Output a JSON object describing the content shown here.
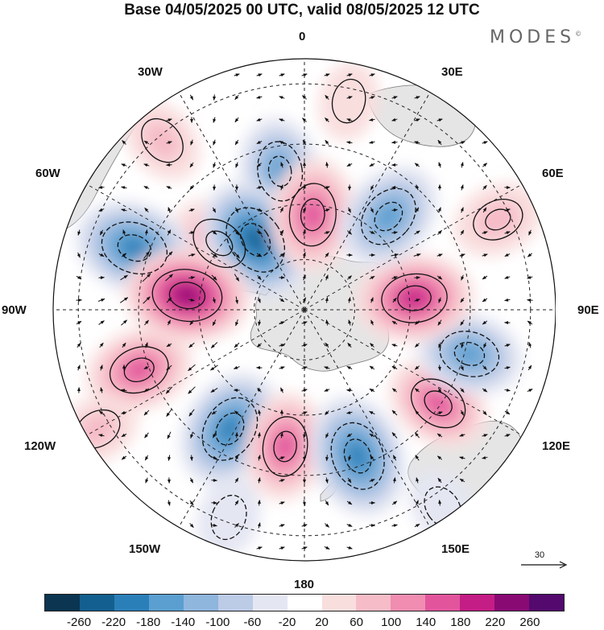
{
  "title": "Base 04/05/2025 00 UTC, valid 08/05/2025 12 UTC",
  "brand": "MODES",
  "brand_mark": "©",
  "longitude_labels": {
    "lon_0": "0",
    "lon_30e": "30E",
    "lon_60e": "60E",
    "lon_90e": "90E",
    "lon_120e": "120E",
    "lon_150e": "150E",
    "lon_180": "180",
    "lon_150w": "150W",
    "lon_120w": "120W",
    "lon_90w": "90W",
    "lon_60w": "60W",
    "lon_30w": "30W"
  },
  "reference_vector": {
    "value": "30"
  },
  "colorbar": {
    "colors": [
      "#0b3550",
      "#135f8f",
      "#2b7fb8",
      "#5a9fd0",
      "#8fb6dd",
      "#bccbe6",
      "#e4e6f2",
      "#ffffff",
      "#f9dede",
      "#f6bcc7",
      "#f08db1",
      "#e2559c",
      "#c41d85",
      "#8a0a74",
      "#53096e"
    ],
    "tick_labels": [
      "-260",
      "-220",
      "-180",
      "-140",
      "-100",
      "-60",
      "-20",
      "20",
      "60",
      "100",
      "140",
      "180",
      "220",
      "260"
    ]
  },
  "projection": "south-polar-stereographic",
  "field_anomalies": [
    {
      "lon_deg": -10,
      "colat": 0.56,
      "value": -150
    },
    {
      "lon_deg": -52,
      "colat": 0.43,
      "value": 130
    },
    {
      "lon_deg": -35,
      "colat": 0.34,
      "value": -220
    },
    {
      "lon_deg": 5,
      "colat": 0.38,
      "value": 170
    },
    {
      "lon_deg": -70,
      "colat": 0.72,
      "value": -200
    },
    {
      "lon_deg": -83,
      "colat": 0.47,
      "value": 220
    },
    {
      "lon_deg": -110,
      "colat": 0.7,
      "value": 150
    },
    {
      "lon_deg": -148,
      "colat": 0.56,
      "value": -200
    },
    {
      "lon_deg": -172,
      "colat": 0.55,
      "value": 150
    },
    {
      "lon_deg": 160,
      "colat": 0.62,
      "value": -210
    },
    {
      "lon_deg": 125,
      "colat": 0.65,
      "value": 140
    },
    {
      "lon_deg": 105,
      "colat": 0.68,
      "value": -150
    },
    {
      "lon_deg": 84,
      "colat": 0.44,
      "value": 190
    },
    {
      "lon_deg": 65,
      "colat": 0.85,
      "value": 90
    },
    {
      "lon_deg": 42,
      "colat": 0.5,
      "value": -170
    },
    {
      "lon_deg": 12,
      "colat": 0.85,
      "value": 40
    },
    {
      "lon_deg": -40,
      "colat": 0.88,
      "value": 70
    },
    {
      "lon_deg": -120,
      "colat": 0.95,
      "value": 60
    },
    {
      "lon_deg": 145,
      "colat": 0.96,
      "value": -40
    },
    {
      "lon_deg": -160,
      "colat": 0.88,
      "value": -50
    }
  ]
}
